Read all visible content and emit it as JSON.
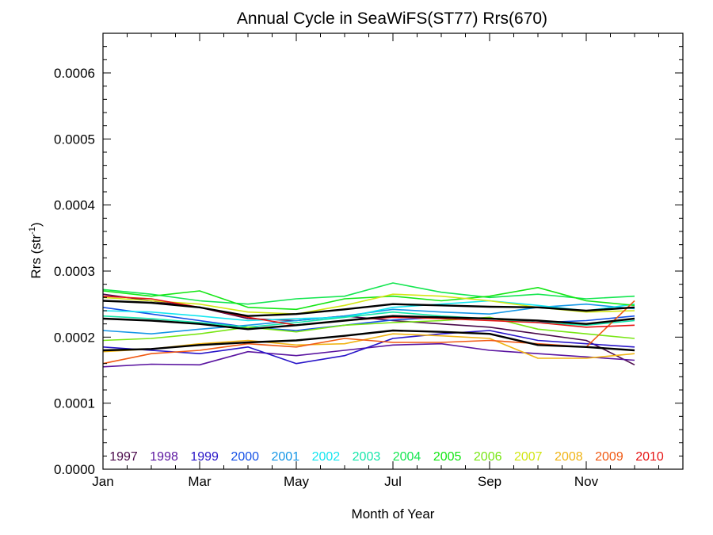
{
  "chart_data": {
    "type": "line",
    "title": "Annual Cycle in SeaWiFS(ST77) Rrs(670)",
    "xlabel": "Month of Year",
    "ylabel_main": "Rrs (str",
    "ylabel_sup": "-1",
    "ylabel_close": ")",
    "xlim": [
      1,
      13
    ],
    "ylim": [
      0,
      0.00066
    ],
    "x": [
      1,
      2,
      3,
      4,
      5,
      6,
      7,
      8,
      9,
      10,
      11,
      12
    ],
    "xticks": [
      {
        "value": 1,
        "label": "Jan"
      },
      {
        "value": 3,
        "label": "Mar"
      },
      {
        "value": 5,
        "label": "May"
      },
      {
        "value": 7,
        "label": "Jul"
      },
      {
        "value": 9,
        "label": "Sep"
      },
      {
        "value": 11,
        "label": "Nov"
      }
    ],
    "yticks": [
      {
        "value": 0.0,
        "label": "0.0000"
      },
      {
        "value": 0.0001,
        "label": "0.0001"
      },
      {
        "value": 0.0002,
        "label": "0.0002"
      },
      {
        "value": 0.0003,
        "label": "0.0003"
      },
      {
        "value": 0.0004,
        "label": "0.0004"
      },
      {
        "value": 0.0005,
        "label": "0.0005"
      },
      {
        "value": 0.0006,
        "label": "0.0006"
      }
    ],
    "grid": false,
    "legend_position": "bottom",
    "series": [
      {
        "name": "1997",
        "color": "#4b0a4b",
        "values": [
          0.000265,
          0.000255,
          0.000245,
          0.000228,
          0.000225,
          0.000232,
          0.000225,
          0.00022,
          0.000215,
          0.000205,
          0.000195,
          0.000158
        ]
      },
      {
        "name": "1998",
        "color": "#5a14a0",
        "values": [
          0.000155,
          0.000159,
          0.000158,
          0.000178,
          0.000172,
          0.00018,
          0.000188,
          0.00019,
          0.00018,
          0.000175,
          0.00017,
          0.000165
        ]
      },
      {
        "name": "1999",
        "color": "#2814c8",
        "values": [
          0.000185,
          0.00018,
          0.000175,
          0.000185,
          0.00016,
          0.000172,
          0.000198,
          0.000205,
          0.00021,
          0.000195,
          0.00019,
          0.000185
        ]
      },
      {
        "name": "2000",
        "color": "#1450e6",
        "values": [
          0.000245,
          0.000235,
          0.000225,
          0.000215,
          0.00021,
          0.000218,
          0.000226,
          0.00023,
          0.000228,
          0.000222,
          0.000225,
          0.000232
        ]
      },
      {
        "name": "2001",
        "color": "#1496e6",
        "values": [
          0.00021,
          0.000205,
          0.000212,
          0.000218,
          0.000225,
          0.000232,
          0.000242,
          0.000238,
          0.000235,
          0.000245,
          0.00025,
          0.000243
        ]
      },
      {
        "name": "2002",
        "color": "#14e6f0",
        "values": [
          0.00024,
          0.000238,
          0.000232,
          0.000225,
          0.000228,
          0.00023,
          0.000245,
          0.00025,
          0.000255,
          0.000248,
          0.00024,
          0.00025
        ]
      },
      {
        "name": "2003",
        "color": "#14e6aa",
        "values": [
          0.000232,
          0.000228,
          0.000222,
          0.000215,
          0.000222,
          0.00023,
          0.000238,
          0.000232,
          0.000228,
          0.000222,
          0.000218,
          0.000225
        ]
      },
      {
        "name": "2004",
        "color": "#14e650",
        "values": [
          0.000272,
          0.000265,
          0.000255,
          0.00025,
          0.000258,
          0.000262,
          0.000282,
          0.000268,
          0.00026,
          0.000265,
          0.000258,
          0.000262
        ]
      },
      {
        "name": "2005",
        "color": "#14e614",
        "values": [
          0.00027,
          0.000262,
          0.00027,
          0.000245,
          0.000242,
          0.000258,
          0.000262,
          0.000255,
          0.000262,
          0.000275,
          0.000255,
          0.000248
        ]
      },
      {
        "name": "2006",
        "color": "#78e614",
        "values": [
          0.000195,
          0.000198,
          0.000205,
          0.000215,
          0.000208,
          0.000218,
          0.000222,
          0.000225,
          0.00023,
          0.000212,
          0.000205,
          0.000198
        ]
      },
      {
        "name": "2007",
        "color": "#d2e614",
        "values": [
          0.00026,
          0.000255,
          0.00025,
          0.000238,
          0.000235,
          0.000248,
          0.000265,
          0.000262,
          0.000255,
          0.000245,
          0.000238,
          0.00024
        ]
      },
      {
        "name": "2008",
        "color": "#f0b414",
        "values": [
          0.000178,
          0.000182,
          0.00019,
          0.000195,
          0.000188,
          0.00019,
          0.000205,
          0.000202,
          0.000198,
          0.000168,
          0.000168,
          0.000175
        ]
      },
      {
        "name": "2009",
        "color": "#f05a14",
        "values": [
          0.00016,
          0.000175,
          0.00018,
          0.00019,
          0.000185,
          0.000198,
          0.000192,
          0.000192,
          0.000195,
          0.00019,
          0.000185,
          0.000255
        ]
      },
      {
        "name": "2010",
        "color": "#e61414",
        "values": [
          0.000262,
          0.000258,
          0.000245,
          0.00023,
          0.000218,
          0.000225,
          0.00023,
          0.000228,
          0.000225,
          0.000222,
          0.000215,
          0.000218
        ]
      }
    ],
    "mean_series": [
      {
        "color": "#000000",
        "values": [
          0.000255,
          0.000252,
          0.000245,
          0.000232,
          0.000235,
          0.000242,
          0.00025,
          0.000248,
          0.000246,
          0.000245,
          0.00024,
          0.000245
        ]
      },
      {
        "color": "#000000",
        "values": [
          0.000228,
          0.000225,
          0.00022,
          0.000212,
          0.000218,
          0.000225,
          0.000232,
          0.00023,
          0.000228,
          0.000225,
          0.00022,
          0.000228
        ]
      },
      {
        "color": "#000000",
        "values": [
          0.00018,
          0.000182,
          0.000188,
          0.000192,
          0.000195,
          0.000202,
          0.00021,
          0.000208,
          0.000205,
          0.000188,
          0.000185,
          0.00018
        ]
      }
    ]
  }
}
